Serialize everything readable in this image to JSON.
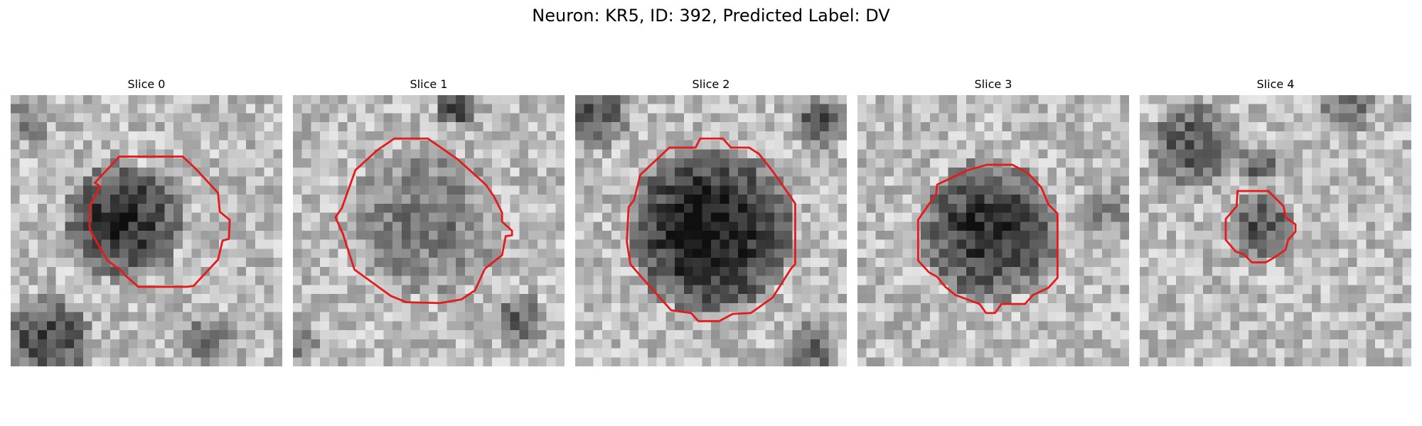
{
  "figure": {
    "title": "Neuron: KR5, ID: 392, Predicted Label: DV",
    "contour_color": "#e51b1b"
  },
  "panels": [
    {
      "title": "Slice 0"
    },
    {
      "title": "Slice 1"
    },
    {
      "title": "Slice 2"
    },
    {
      "title": "Slice 3"
    },
    {
      "title": "Slice 4"
    }
  ]
}
